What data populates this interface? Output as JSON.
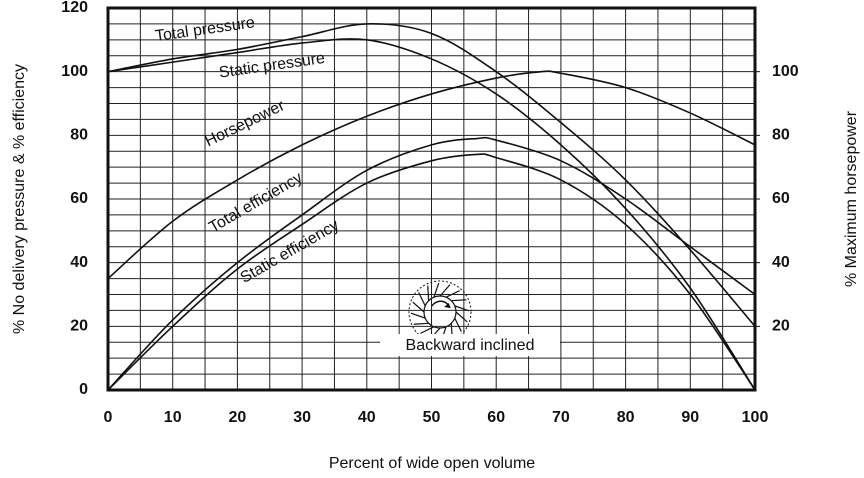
{
  "chart_data": {
    "type": "line",
    "xlabel": "Percent of wide open volume",
    "ylabel": "% No delivery pressure & % efficiency",
    "y2label": "% Maximum horsepower",
    "xlim": [
      0,
      100
    ],
    "xticks": [
      0,
      10,
      20,
      30,
      40,
      50,
      60,
      70,
      80,
      90,
      100
    ],
    "ylim": [
      0,
      120
    ],
    "yticks": [
      0,
      20,
      40,
      60,
      80,
      100,
      120
    ],
    "y2lim": [
      0,
      120
    ],
    "y2ticks": [
      20,
      40,
      60,
      80,
      100
    ],
    "minor_xticks": [
      5,
      15,
      25,
      35,
      45,
      55,
      65,
      75,
      85,
      95
    ],
    "minor_yticks": [
      5,
      10,
      15,
      25,
      30,
      35,
      45,
      50,
      55,
      65,
      70,
      75,
      85,
      90,
      95,
      105,
      110,
      115
    ],
    "grid": true,
    "series": [
      {
        "name": "Total pressure",
        "color": "#111111",
        "x": [
          0,
          10,
          20,
          30,
          40,
          50,
          60,
          70,
          80,
          90,
          100
        ],
        "values": [
          100,
          104,
          107,
          111,
          115,
          112,
          100,
          84,
          66,
          44,
          20
        ]
      },
      {
        "name": "Static pressure",
        "color": "#111111",
        "x": [
          0,
          10,
          20,
          30,
          40,
          50,
          60,
          70,
          80,
          90,
          100
        ],
        "values": [
          100,
          103,
          106,
          109,
          110,
          104,
          93,
          77,
          57,
          32,
          0
        ]
      },
      {
        "name": "Horsepower",
        "color": "#111111",
        "axis": "y2",
        "x": [
          0,
          10,
          20,
          30,
          40,
          50,
          60,
          67,
          70,
          80,
          90,
          100
        ],
        "values": [
          35,
          53,
          66,
          77,
          86,
          93,
          98,
          100,
          99.5,
          95,
          87,
          77
        ]
      },
      {
        "name": "Total efficiency",
        "color": "#111111",
        "x": [
          0,
          10,
          20,
          30,
          40,
          50,
          57,
          60,
          70,
          80,
          90,
          100
        ],
        "values": [
          0,
          22,
          40,
          55,
          69,
          77,
          79,
          78.5,
          72,
          60,
          45,
          30
        ]
      },
      {
        "name": "Static efficiency",
        "color": "#111111",
        "x": [
          0,
          10,
          20,
          30,
          40,
          50,
          57,
          60,
          70,
          80,
          90,
          100
        ],
        "values": [
          0,
          20,
          38,
          52,
          65,
          72,
          74,
          73,
          66,
          52,
          30,
          0
        ]
      }
    ],
    "annotations": [
      "Backward inclined"
    ]
  }
}
